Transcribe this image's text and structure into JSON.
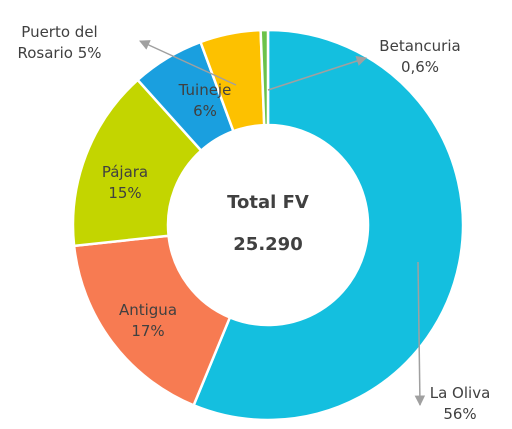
{
  "chart_data": {
    "type": "donut",
    "categories": [
      "La Oliva",
      "Antigua",
      "Pájara",
      "Tuineje",
      "Puerto del Rosario",
      "Betancuria"
    ],
    "values": [
      56,
      17,
      15,
      6,
      5,
      0.6
    ],
    "value_labels": [
      "56%",
      "17%",
      "15%",
      "6%",
      "5%",
      "0,6%"
    ],
    "colors": [
      "#14bfdf",
      "#f77b52",
      "#c3d500",
      "#1a9fdf",
      "#fdc100",
      "#6cc24a"
    ],
    "center_title": "Total FV",
    "center_value": "25.290"
  }
}
